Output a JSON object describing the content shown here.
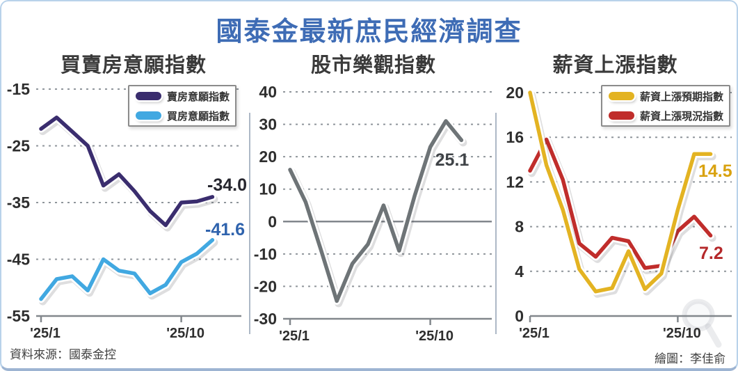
{
  "card": {
    "main_title": "國泰金最新庶民經濟調查",
    "title_color": "#3e6cb5",
    "source": "資料來源：國泰金控",
    "credit": "繪圖：李佳俞"
  },
  "colors": {
    "gridline": "#8f959b",
    "axis_line": "#82878c",
    "axis_text": "#2e2e2e",
    "panel_title": "#3a3a3a",
    "separator": "#adb8c6"
  },
  "chart_data": [
    {
      "type": "line",
      "title": "買賣房意願指數",
      "x_tick_labels": [
        "'25/1",
        "'25/10"
      ],
      "x_tick_indices": [
        0,
        9
      ],
      "ylim": [
        -55,
        -15
      ],
      "yticks": [
        -15,
        -25,
        -35,
        -45,
        -55
      ],
      "grid": "dashed",
      "legend_position": "top-right",
      "series": [
        {
          "name": "賣房意願指數",
          "color": "#3a2d6e",
          "values": [
            -22,
            -20,
            -22.5,
            -25,
            -32,
            -30,
            -33,
            -36.5,
            -39,
            -35,
            -34.8,
            -34.0
          ],
          "end_label": "-34.0",
          "end_label_color": "#26262e"
        },
        {
          "name": "買房意願指數",
          "color": "#41a8e1",
          "values": [
            -52,
            -48.5,
            -48,
            -50.5,
            -45,
            -47,
            -47.5,
            -51,
            -49.5,
            -45.5,
            -44,
            -41.6
          ],
          "end_label": "-41.6",
          "end_label_color": "#2f63ad"
        }
      ]
    },
    {
      "type": "line",
      "title": "股市樂觀指數",
      "x_tick_labels": [
        "'25/1",
        "'25/10"
      ],
      "x_tick_indices": [
        0,
        9
      ],
      "ylim": [
        -30,
        40
      ],
      "yticks": [
        40,
        30,
        20,
        10,
        0,
        -10,
        -20,
        -30
      ],
      "solid_ytick": 0,
      "grid": "dashed",
      "legend_position": "none",
      "series": [
        {
          "name": "股市樂觀指數",
          "color": "#6e7477",
          "values": [
            16,
            6,
            -9,
            -24.5,
            -13,
            -7,
            5,
            -9,
            8,
            23,
            31,
            25.1
          ],
          "end_label": "25.1",
          "end_label_color": "#3f4347"
        }
      ]
    },
    {
      "type": "line",
      "title": "薪資上漲指數",
      "x_tick_labels": [
        "'25/1",
        "'25/10"
      ],
      "x_tick_indices": [
        0,
        9
      ],
      "ylim": [
        0,
        20
      ],
      "yticks": [
        20,
        16,
        12,
        8,
        4,
        0
      ],
      "grid": "dashed",
      "legend_position": "top-right",
      "series": [
        {
          "name": "薪資上漲預期指數",
          "color": "#e3b322",
          "values": [
            20,
            13.5,
            9.5,
            4.2,
            2.2,
            2.5,
            5.8,
            2.4,
            3.8,
            9.5,
            14.5,
            14.5
          ],
          "end_label": "14.5",
          "end_label_color": "#d9a20f"
        },
        {
          "name": "薪資上漲現況指數",
          "color": "#c02d2b",
          "values": [
            13,
            15.8,
            12.2,
            6.5,
            5.3,
            7.0,
            6.7,
            4.3,
            4.5,
            7.6,
            8.9,
            7.2
          ],
          "end_label": "7.2",
          "end_label_color": "#b5282a"
        }
      ]
    }
  ]
}
